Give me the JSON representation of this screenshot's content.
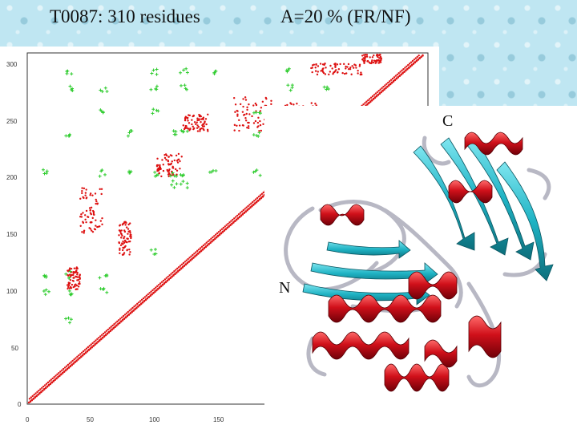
{
  "slide": {
    "title": "T0087: 310 residues",
    "subtitle": "A=20 % (FR/NF)"
  },
  "contact_map": {
    "y_ticks": [
      "300",
      "250",
      "200",
      "150",
      "100",
      "50",
      "0"
    ],
    "x_ticks": [
      "0",
      "50",
      "100",
      "150"
    ],
    "colors": {
      "predicted": "#2ecc2e",
      "native": "#dd1111",
      "frame": "#333333"
    }
  },
  "structure": {
    "c_label": "C",
    "n_label": "N",
    "colors": {
      "helix": "#d0101a",
      "strand": "#1fb3c4",
      "coil": "#c8c8d0"
    }
  }
}
